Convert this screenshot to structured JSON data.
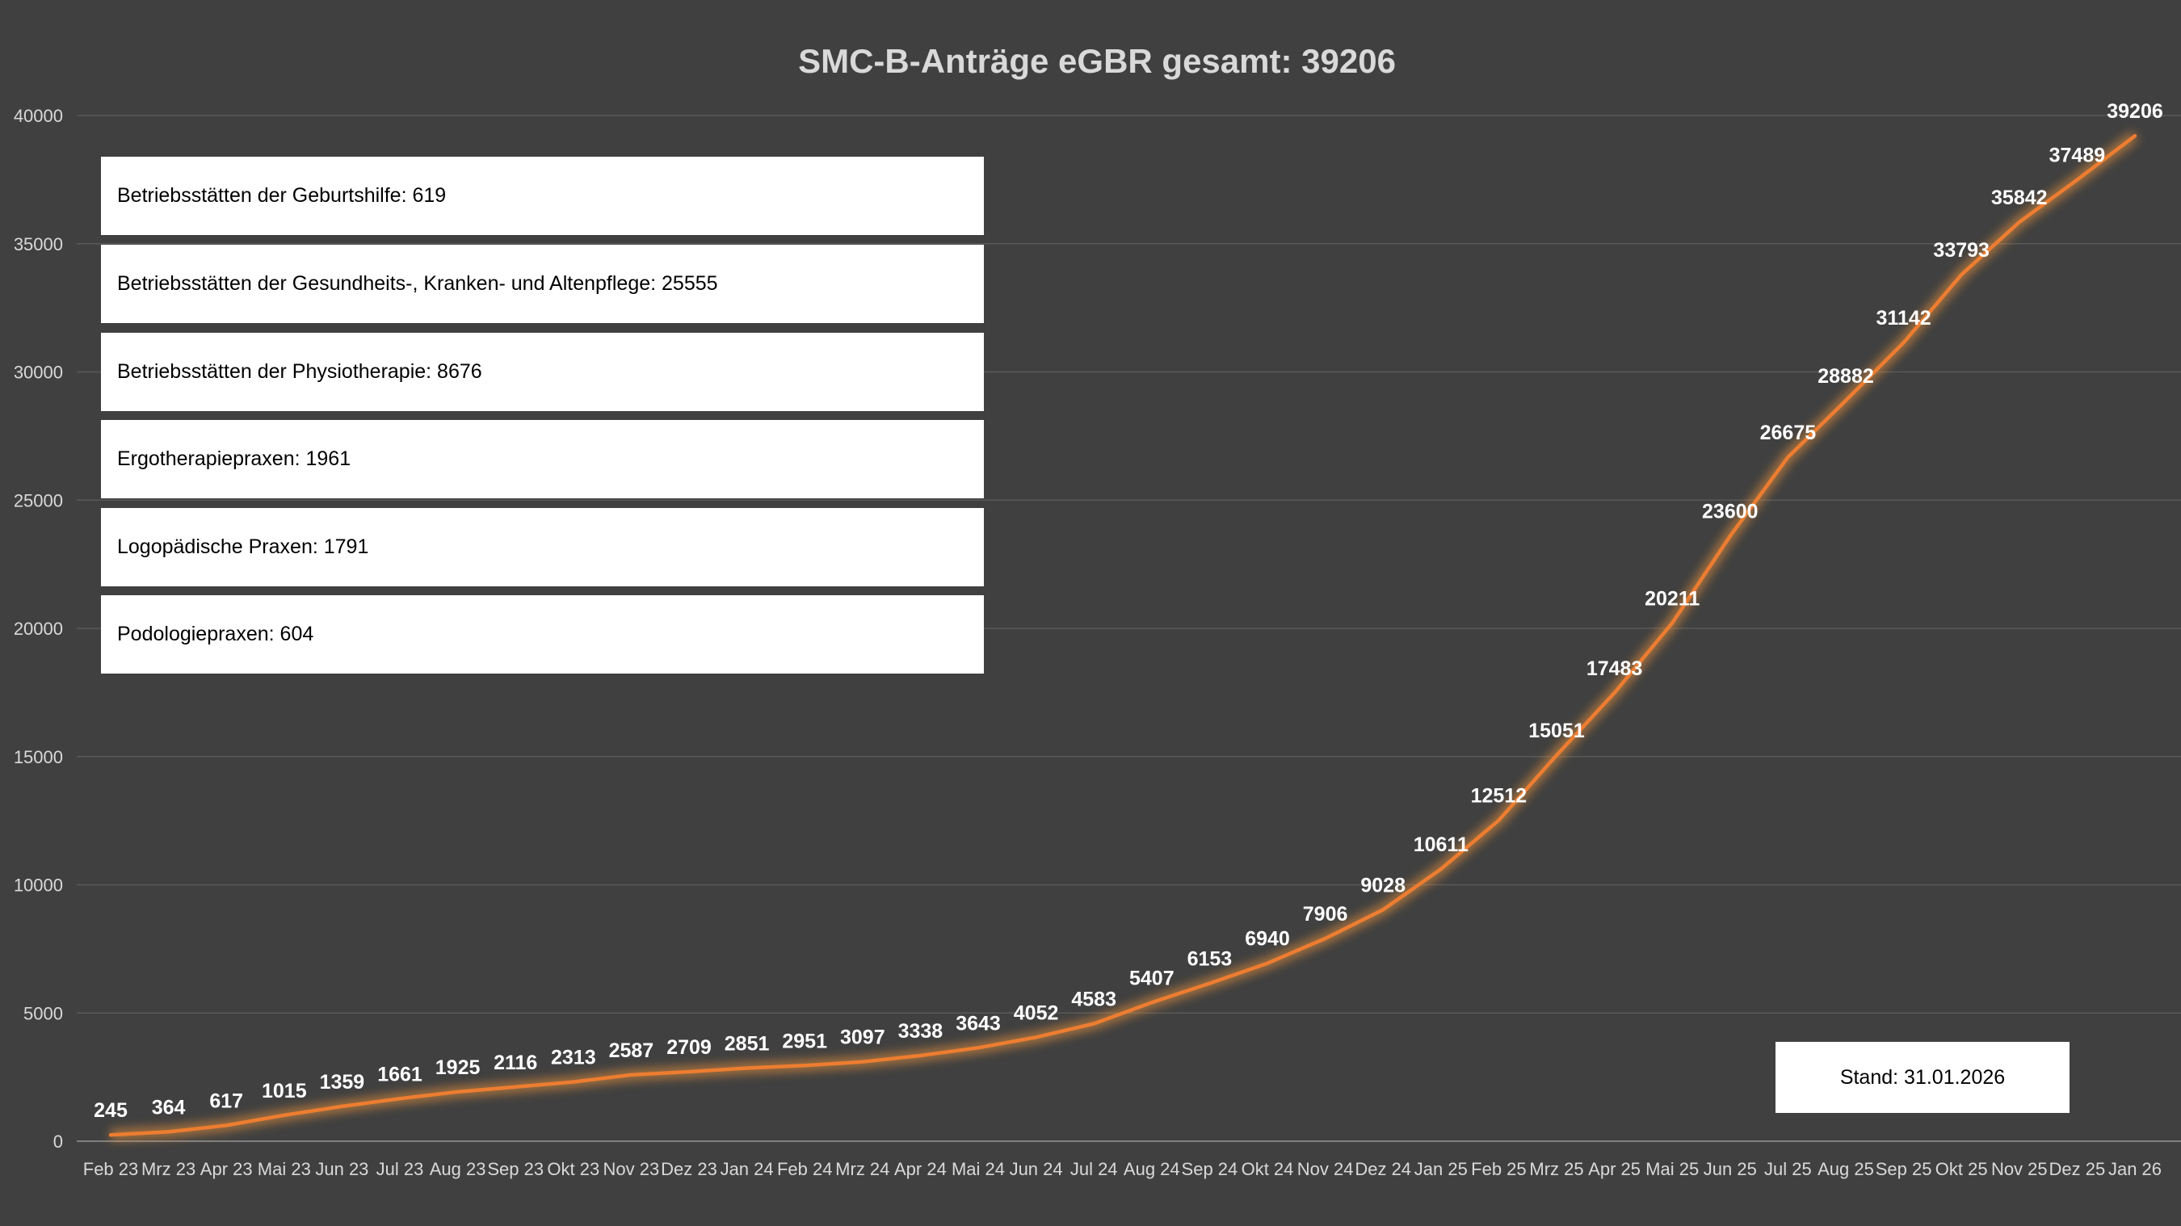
{
  "chart_data": {
    "type": "line",
    "title": "SMC-B-Anträge eGBR gesamt: 39206",
    "xlabel": "",
    "ylabel": "",
    "ylim": [
      0,
      40000
    ],
    "yticks": [
      "0",
      "5000",
      "10000",
      "15000",
      "20000",
      "25000",
      "30000",
      "35000",
      "40000"
    ],
    "grid": true,
    "categories": [
      "Feb 23",
      "Mrz 23",
      "Apr 23",
      "Mai 23",
      "Jun 23",
      "Jul 23",
      "Aug 23",
      "Sep 23",
      "Okt 23",
      "Nov 23",
      "Dez 23",
      "Jan 24",
      "Feb 24",
      "Mrz 24",
      "Apr 24",
      "Mai 24",
      "Jun 24",
      "Jul 24",
      "Aug 24",
      "Sep 24",
      "Okt 24",
      "Nov 24",
      "Dez 24",
      "Jan 25",
      "Feb 25",
      "Mrz 25",
      "Apr 25",
      "Mai 25",
      "Jun 25",
      "Jul 25",
      "Aug 25",
      "Sep 25",
      "Okt 25",
      "Nov 25",
      "Dez 25",
      "Jan 26"
    ],
    "series": [
      {
        "values": [
          245,
          364,
          617,
          1015,
          1359,
          1661,
          1925,
          2116,
          2313,
          2587,
          2709,
          2851,
          2951,
          3097,
          3338,
          3643,
          4052,
          4583,
          5407,
          6153,
          6940,
          7906,
          9028,
          10611,
          12512,
          15051,
          17483,
          20211,
          23600,
          26675,
          28882,
          31142,
          33793,
          35842,
          37489,
          39206
        ]
      }
    ],
    "colors": {
      "line": "#ed7d31",
      "glow": "#ff9a3c",
      "background": "#404040",
      "grid": "#595959",
      "text": "#d9d9d9",
      "labels": "#ffffff"
    }
  },
  "legend_boxes": [
    "Betriebsstätten der Geburtshilfe: 619",
    "Betriebsstätten der Gesundheits-, Kranken- und Altenpflege: 25555",
    "Betriebsstätten der Physiotherapie: 8676",
    "Ergotherapiepraxen: 1961",
    "Logopädische Praxen: 1791",
    "Podologiepraxen: 604"
  ],
  "stand": "Stand: 31.01.2026"
}
